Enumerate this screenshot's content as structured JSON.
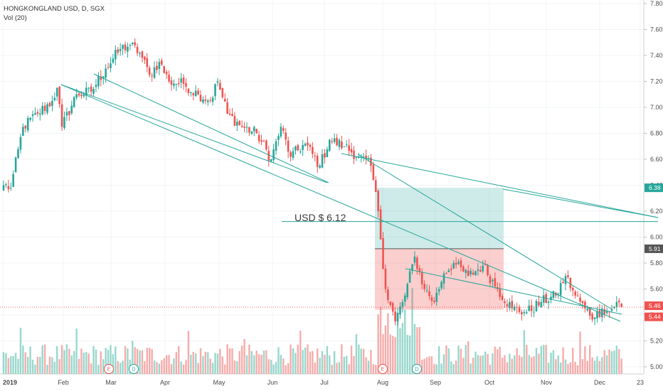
{
  "chart_data": {
    "type": "candlestick",
    "title": "HONGKONGLAND USD, D, SGX",
    "subtitle": "Vol (20)",
    "ylim": [
      4.95,
      7.8
    ],
    "y_ticks": [
      "7.80",
      "7.60",
      "7.40",
      "7.20",
      "7.00",
      "6.80",
      "6.60",
      "6.40",
      "6.20",
      "6.00",
      "5.80",
      "5.60",
      "5.40",
      "5.20",
      "5.00"
    ],
    "x_ticks": [
      "2019",
      "Feb",
      "Mar",
      "Apr",
      "May",
      "Jun",
      "Jul",
      "Aug",
      "Sep",
      "Oct",
      "Nov",
      "Dec",
      "23"
    ],
    "colors": {
      "up": "#26a69a",
      "down": "#ef5350",
      "up_vol": "#8dd3c7",
      "down_vol": "#f5a3a1",
      "trend": "#26a69a"
    },
    "price_labels": [
      {
        "text": "6.38",
        "color": "#26a69a"
      },
      {
        "text": "5.91",
        "color": "#555555"
      },
      {
        "text": "5.46",
        "color": "#ef5350"
      },
      {
        "text": "5.44",
        "color": "#ef5350"
      }
    ],
    "annotation": "USD $ 6.12",
    "events": [
      "E",
      "D",
      "E",
      "D"
    ],
    "keypoints": [
      {
        "i": 0,
        "p": 6.4
      },
      {
        "i": 3,
        "p": 6.38
      },
      {
        "i": 8,
        "p": 6.85
      },
      {
        "i": 14,
        "p": 6.95
      },
      {
        "i": 20,
        "p": 7.05
      },
      {
        "i": 22,
        "p": 7.15
      },
      {
        "i": 24,
        "p": 6.85
      },
      {
        "i": 30,
        "p": 7.1
      },
      {
        "i": 36,
        "p": 7.12
      },
      {
        "i": 42,
        "p": 7.3
      },
      {
        "i": 48,
        "p": 7.45
      },
      {
        "i": 52,
        "p": 7.48
      },
      {
        "i": 56,
        "p": 7.42
      },
      {
        "i": 60,
        "p": 7.25
      },
      {
        "i": 64,
        "p": 7.35
      },
      {
        "i": 68,
        "p": 7.2
      },
      {
        "i": 74,
        "p": 7.18
      },
      {
        "i": 80,
        "p": 7.1
      },
      {
        "i": 85,
        "p": 7.05
      },
      {
        "i": 88,
        "p": 7.2
      },
      {
        "i": 92,
        "p": 6.95
      },
      {
        "i": 98,
        "p": 6.85
      },
      {
        "i": 104,
        "p": 6.8
      },
      {
        "i": 110,
        "p": 6.6
      },
      {
        "i": 114,
        "p": 6.85
      },
      {
        "i": 118,
        "p": 6.62
      },
      {
        "i": 124,
        "p": 6.72
      },
      {
        "i": 130,
        "p": 6.55
      },
      {
        "i": 134,
        "p": 6.75
      },
      {
        "i": 140,
        "p": 6.7
      },
      {
        "i": 146,
        "p": 6.62
      },
      {
        "i": 151,
        "p": 6.55
      },
      {
        "i": 154,
        "p": 6.2
      },
      {
        "i": 157,
        "p": 5.6
      },
      {
        "i": 161,
        "p": 5.35
      },
      {
        "i": 165,
        "p": 5.55
      },
      {
        "i": 169,
        "p": 5.85
      },
      {
        "i": 173,
        "p": 5.6
      },
      {
        "i": 177,
        "p": 5.5
      },
      {
        "i": 181,
        "p": 5.72
      },
      {
        "i": 185,
        "p": 5.8
      },
      {
        "i": 191,
        "p": 5.7
      },
      {
        "i": 197,
        "p": 5.78
      },
      {
        "i": 203,
        "p": 5.6
      },
      {
        "i": 209,
        "p": 5.45
      },
      {
        "i": 215,
        "p": 5.42
      },
      {
        "i": 221,
        "p": 5.5
      },
      {
        "i": 227,
        "p": 5.55
      },
      {
        "i": 231,
        "p": 5.7
      },
      {
        "i": 235,
        "p": 5.55
      },
      {
        "i": 239,
        "p": 5.45
      },
      {
        "i": 243,
        "p": 5.38
      },
      {
        "i": 246,
        "p": 5.45
      },
      {
        "i": 249,
        "p": 5.42
      },
      {
        "i": 252,
        "p": 5.5
      },
      {
        "i": 254,
        "p": 5.46
      }
    ]
  }
}
